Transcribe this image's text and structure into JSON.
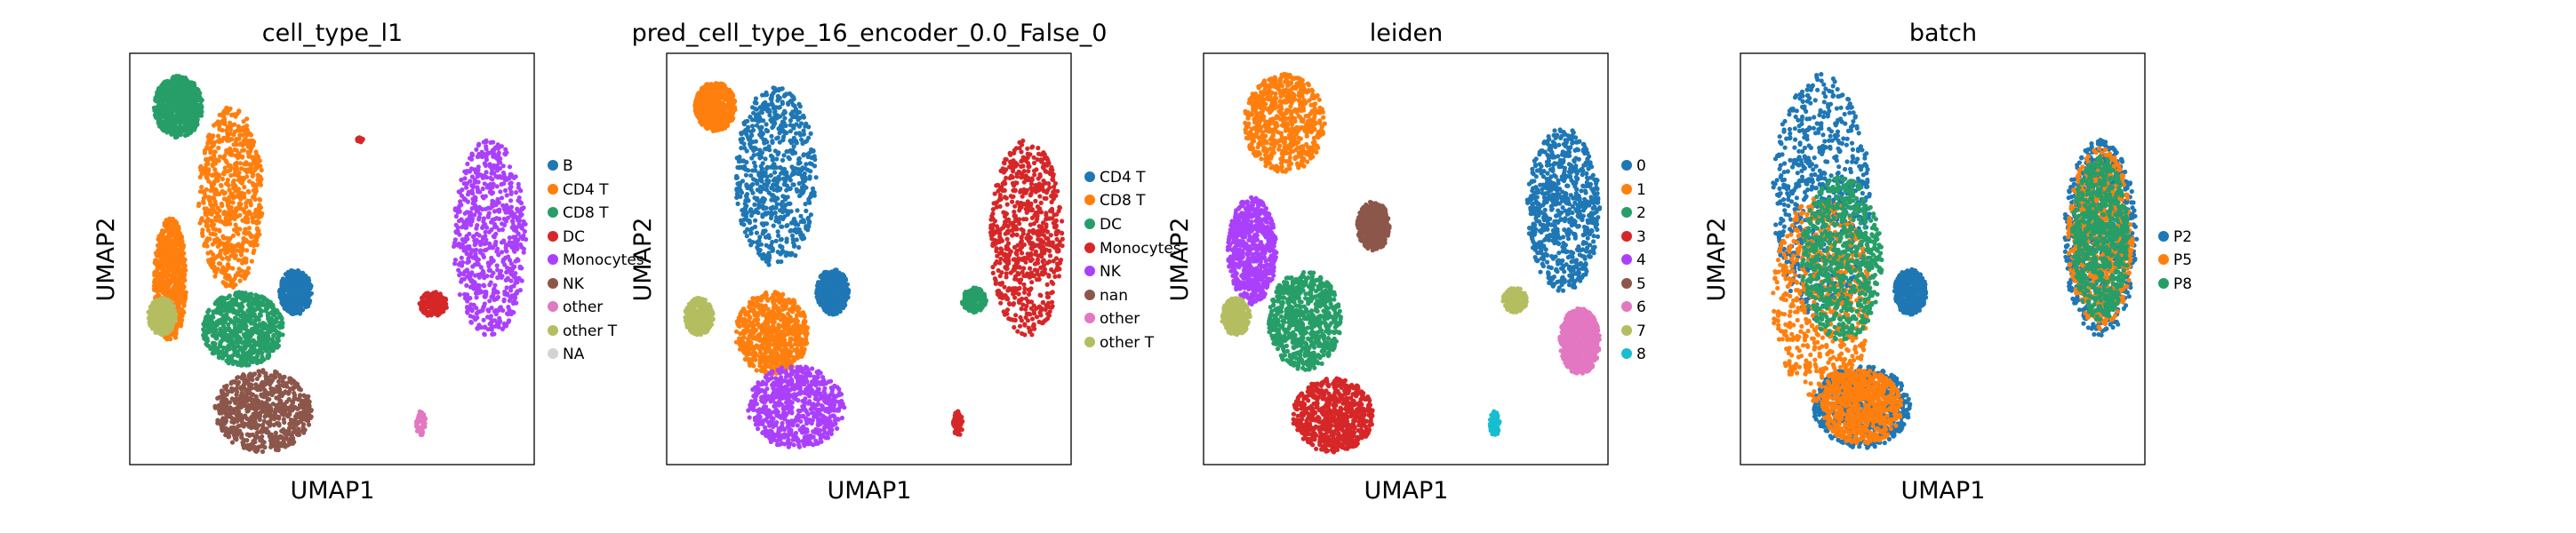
{
  "figure": {
    "panels": [
      {
        "title": "cell_type_l1",
        "xlabel": "UMAP1",
        "ylabel": "UMAP2",
        "legend": [
          {
            "label": "B",
            "color": "#1f77b4"
          },
          {
            "label": "CD4 T",
            "color": "#ff7f0e"
          },
          {
            "label": "CD8 T",
            "color": "#279e68"
          },
          {
            "label": "DC",
            "color": "#d62728"
          },
          {
            "label": "Monocytes",
            "color": "#aa40fc"
          },
          {
            "label": "NK",
            "color": "#8c564b"
          },
          {
            "label": "other",
            "color": "#e377c2"
          },
          {
            "label": "other T",
            "color": "#b5bd61"
          },
          {
            "label": "NA",
            "color": "#d3d3d3"
          }
        ]
      },
      {
        "title": "pred_cell_type_16_encoder_0.0_False_0",
        "xlabel": "UMAP1",
        "ylabel": "UMAP2",
        "legend": [
          {
            "label": "CD4 T",
            "color": "#1f77b4"
          },
          {
            "label": "CD8 T",
            "color": "#ff7f0e"
          },
          {
            "label": "DC",
            "color": "#279e68"
          },
          {
            "label": "Monocytes",
            "color": "#d62728"
          },
          {
            "label": "NK",
            "color": "#aa40fc"
          },
          {
            "label": "nan",
            "color": "#8c564b"
          },
          {
            "label": "other",
            "color": "#e377c2"
          },
          {
            "label": "other T",
            "color": "#b5bd61"
          }
        ]
      },
      {
        "title": "leiden",
        "xlabel": "UMAP1",
        "ylabel": "UMAP2",
        "legend": [
          {
            "label": "0",
            "color": "#1f77b4"
          },
          {
            "label": "1",
            "color": "#ff7f0e"
          },
          {
            "label": "2",
            "color": "#279e68"
          },
          {
            "label": "3",
            "color": "#d62728"
          },
          {
            "label": "4",
            "color": "#aa40fc"
          },
          {
            "label": "5",
            "color": "#8c564b"
          },
          {
            "label": "6",
            "color": "#e377c2"
          },
          {
            "label": "7",
            "color": "#b5bd61"
          },
          {
            "label": "8",
            "color": "#17becf"
          }
        ]
      },
      {
        "title": "batch",
        "xlabel": "UMAP1",
        "ylabel": "UMAP2",
        "legend": [
          {
            "label": "P2",
            "color": "#1f77b4"
          },
          {
            "label": "P5",
            "color": "#ff7f0e"
          },
          {
            "label": "P8",
            "color": "#279e68"
          }
        ]
      }
    ]
  },
  "chart_data": [
    {
      "type": "scatter",
      "title": "cell_type_l1",
      "xlabel": "UMAP1",
      "ylabel": "UMAP2",
      "grid": false,
      "legend_position": "right",
      "series": [
        {
          "name": "B",
          "color": "#1f77b4",
          "clusters": [
            {
              "cx": 0.41,
              "cy": 0.42,
              "rx": 0.04,
              "ry": 0.055
            }
          ]
        },
        {
          "name": "CD4 T",
          "color": "#ff7f0e",
          "clusters": [
            {
              "cx": 0.25,
              "cy": 0.65,
              "rx": 0.08,
              "ry": 0.22
            },
            {
              "cx": 0.1,
              "cy": 0.45,
              "rx": 0.04,
              "ry": 0.15
            }
          ]
        },
        {
          "name": "CD8 T",
          "color": "#279e68",
          "clusters": [
            {
              "cx": 0.12,
              "cy": 0.87,
              "rx": 0.06,
              "ry": 0.075
            },
            {
              "cx": 0.28,
              "cy": 0.33,
              "rx": 0.1,
              "ry": 0.09
            }
          ]
        },
        {
          "name": "DC",
          "color": "#d62728",
          "clusters": [
            {
              "cx": 0.75,
              "cy": 0.39,
              "rx": 0.035,
              "ry": 0.03
            },
            {
              "cx": 0.57,
              "cy": 0.79,
              "rx": 0.008,
              "ry": 0.006
            }
          ]
        },
        {
          "name": "Monocytes",
          "color": "#aa40fc",
          "clusters": [
            {
              "cx": 0.89,
              "cy": 0.55,
              "rx": 0.09,
              "ry": 0.24
            }
          ]
        },
        {
          "name": "NK",
          "color": "#8c564b",
          "clusters": [
            {
              "cx": 0.33,
              "cy": 0.13,
              "rx": 0.12,
              "ry": 0.1
            }
          ]
        },
        {
          "name": "other",
          "color": "#e377c2",
          "clusters": [
            {
              "cx": 0.72,
              "cy": 0.1,
              "rx": 0.012,
              "ry": 0.03
            }
          ]
        },
        {
          "name": "other T",
          "color": "#b5bd61",
          "clusters": [
            {
              "cx": 0.08,
              "cy": 0.36,
              "rx": 0.035,
              "ry": 0.045
            }
          ]
        },
        {
          "name": "NA",
          "color": "#d3d3d3",
          "clusters": []
        }
      ]
    },
    {
      "type": "scatter",
      "title": "pred_cell_type_16_encoder_0.0_False_0",
      "xlabel": "UMAP1",
      "ylabel": "UMAP2",
      "grid": false,
      "legend_position": "right",
      "series": [
        {
          "name": "CD4 T",
          "color": "#1f77b4",
          "clusters": [
            {
              "cx": 0.27,
              "cy": 0.7,
              "rx": 0.1,
              "ry": 0.22
            },
            {
              "cx": 0.41,
              "cy": 0.42,
              "rx": 0.04,
              "ry": 0.055
            }
          ]
        },
        {
          "name": "CD8 T",
          "color": "#ff7f0e",
          "clusters": [
            {
              "cx": 0.26,
              "cy": 0.32,
              "rx": 0.09,
              "ry": 0.1
            },
            {
              "cx": 0.12,
              "cy": 0.87,
              "rx": 0.05,
              "ry": 0.06
            }
          ]
        },
        {
          "name": "DC",
          "color": "#279e68",
          "clusters": [
            {
              "cx": 0.76,
              "cy": 0.4,
              "rx": 0.03,
              "ry": 0.03
            }
          ]
        },
        {
          "name": "Monocytes",
          "color": "#d62728",
          "clusters": [
            {
              "cx": 0.89,
              "cy": 0.55,
              "rx": 0.09,
              "ry": 0.24
            },
            {
              "cx": 0.72,
              "cy": 0.1,
              "rx": 0.012,
              "ry": 0.03
            }
          ]
        },
        {
          "name": "NK",
          "color": "#aa40fc",
          "clusters": [
            {
              "cx": 0.32,
              "cy": 0.14,
              "rx": 0.12,
              "ry": 0.1
            }
          ]
        },
        {
          "name": "nan",
          "color": "#8c564b",
          "clusters": []
        },
        {
          "name": "other",
          "color": "#e377c2",
          "clusters": []
        },
        {
          "name": "other T",
          "color": "#b5bd61",
          "clusters": [
            {
              "cx": 0.08,
              "cy": 0.36,
              "rx": 0.035,
              "ry": 0.045
            }
          ]
        }
      ]
    },
    {
      "type": "scatter",
      "title": "leiden",
      "xlabel": "UMAP1",
      "ylabel": "UMAP2",
      "grid": false,
      "legend_position": "right",
      "series": [
        {
          "name": "0",
          "color": "#1f77b4",
          "clusters": [
            {
              "cx": 0.89,
              "cy": 0.62,
              "rx": 0.09,
              "ry": 0.2
            }
          ]
        },
        {
          "name": "1",
          "color": "#ff7f0e",
          "clusters": [
            {
              "cx": 0.2,
              "cy": 0.83,
              "rx": 0.1,
              "ry": 0.12
            }
          ]
        },
        {
          "name": "2",
          "color": "#279e68",
          "clusters": [
            {
              "cx": 0.25,
              "cy": 0.35,
              "rx": 0.09,
              "ry": 0.12
            }
          ]
        },
        {
          "name": "3",
          "color": "#d62728",
          "clusters": [
            {
              "cx": 0.32,
              "cy": 0.12,
              "rx": 0.1,
              "ry": 0.09
            }
          ]
        },
        {
          "name": "4",
          "color": "#aa40fc",
          "clusters": [
            {
              "cx": 0.12,
              "cy": 0.52,
              "rx": 0.06,
              "ry": 0.13
            }
          ]
        },
        {
          "name": "5",
          "color": "#8c564b",
          "clusters": [
            {
              "cx": 0.42,
              "cy": 0.58,
              "rx": 0.04,
              "ry": 0.06
            }
          ]
        },
        {
          "name": "6",
          "color": "#e377c2",
          "clusters": [
            {
              "cx": 0.93,
              "cy": 0.3,
              "rx": 0.05,
              "ry": 0.08
            }
          ]
        },
        {
          "name": "7",
          "color": "#b5bd61",
          "clusters": [
            {
              "cx": 0.08,
              "cy": 0.36,
              "rx": 0.035,
              "ry": 0.045
            },
            {
              "cx": 0.77,
              "cy": 0.4,
              "rx": 0.03,
              "ry": 0.03
            }
          ]
        },
        {
          "name": "8",
          "color": "#17becf",
          "clusters": [
            {
              "cx": 0.72,
              "cy": 0.1,
              "rx": 0.012,
              "ry": 0.03
            }
          ]
        }
      ]
    },
    {
      "type": "scatter",
      "title": "batch",
      "xlabel": "UMAP1",
      "ylabel": "UMAP2",
      "grid": false,
      "legend_position": "right",
      "series": [
        {
          "name": "P2",
          "color": "#1f77b4",
          "clusters": [
            {
              "cx": 0.2,
              "cy": 0.65,
              "rx": 0.12,
              "ry": 0.3
            },
            {
              "cx": 0.89,
              "cy": 0.55,
              "rx": 0.09,
              "ry": 0.24
            },
            {
              "cx": 0.3,
              "cy": 0.14,
              "rx": 0.12,
              "ry": 0.1
            },
            {
              "cx": 0.42,
              "cy": 0.42,
              "rx": 0.04,
              "ry": 0.055
            }
          ]
        },
        {
          "name": "P5",
          "color": "#ff7f0e",
          "clusters": [
            {
              "cx": 0.2,
              "cy": 0.4,
              "rx": 0.12,
              "ry": 0.25
            },
            {
              "cx": 0.89,
              "cy": 0.55,
              "rx": 0.08,
              "ry": 0.22
            },
            {
              "cx": 0.3,
              "cy": 0.14,
              "rx": 0.1,
              "ry": 0.09
            }
          ]
        },
        {
          "name": "P8",
          "color": "#279e68",
          "clusters": [
            {
              "cx": 0.25,
              "cy": 0.5,
              "rx": 0.1,
              "ry": 0.2
            },
            {
              "cx": 0.89,
              "cy": 0.55,
              "rx": 0.07,
              "ry": 0.2
            }
          ]
        }
      ]
    }
  ]
}
